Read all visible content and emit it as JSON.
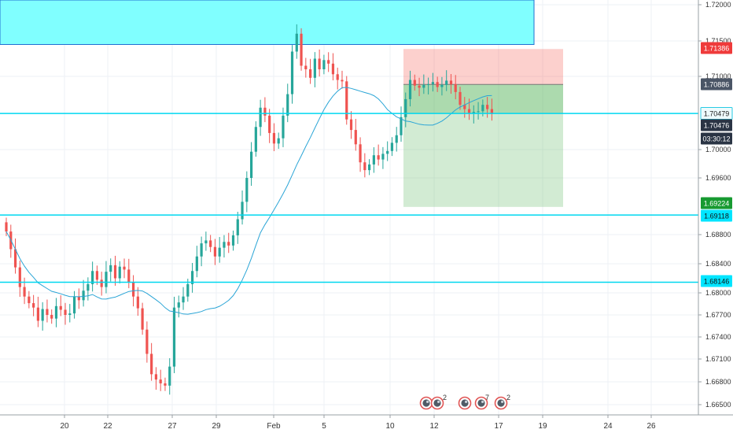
{
  "chart_data": {
    "type": "candlestick",
    "x_ticks": [
      "20",
      "22",
      "27",
      "29",
      "Feb",
      "5",
      "10",
      "12",
      "17",
      "19",
      "24",
      "26"
    ],
    "y_ticks": [
      "1.72000",
      "1.71500",
      "1.71000",
      "1.70000",
      "1.69600",
      "1.68800",
      "1.68400",
      "1.68000",
      "1.67700",
      "1.67400",
      "1.67100",
      "1.66800",
      "1.66500"
    ],
    "price_tags": [
      {
        "value": "1.71386",
        "bg": "#ef3a3a",
        "fg": "#ffffff"
      },
      {
        "value": "1.70886",
        "bg": "#4a5566",
        "fg": "#ffffff"
      },
      {
        "value": "1.70479",
        "bg": "#eefbfd",
        "fg": "#222222",
        "border": "#28cbe4"
      },
      {
        "value": "1.70476",
        "bg": "#2a3444",
        "fg": "#ffffff"
      },
      {
        "value": "03:30:12",
        "bg": "#2a3444",
        "fg": "#ffffff"
      },
      {
        "value": "1.69224",
        "bg": "#179a31",
        "fg": "#ffffff"
      },
      {
        "value": "1.69118",
        "bg": "#00e5ff",
        "fg": "#111111"
      },
      {
        "value": "1.68146",
        "bg": "#00e5ff",
        "fg": "#111111"
      }
    ],
    "horizontal_levels": [
      1.70479,
      1.69118,
      1.68146
    ],
    "supply_zone": {
      "from": 1.7145,
      "to": 1.7203,
      "color": "#80ffff"
    },
    "position": {
      "entry": 1.70886,
      "stop": 1.71386,
      "target": 1.69224,
      "current": 1.70476
    },
    "moving_average": true,
    "event_markers": [
      {
        "count": "2"
      },
      {
        "count": "7"
      },
      {
        "count": "2"
      }
    ],
    "colors": {
      "up": "#26a69a",
      "down": "#ef5350",
      "ma": "#2ba5d6",
      "level": "#00d8f0"
    }
  }
}
